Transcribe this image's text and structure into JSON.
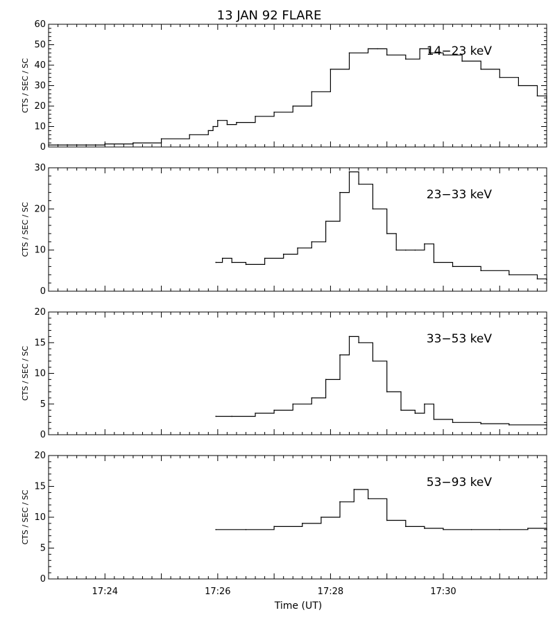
{
  "figure": {
    "title": "13 JAN 92 FLARE",
    "xlabel": "Time (UT)"
  },
  "chart_data": [
    {
      "type": "line",
      "label": "14-23 keV",
      "ylabel": "CTS / SEC / SC",
      "ylim": [
        0,
        60
      ],
      "yticks": [
        0,
        10,
        20,
        30,
        40,
        50,
        60
      ],
      "xlim": [
        "17:23",
        "17:31:50"
      ],
      "xticks": [
        "17:24",
        "17:26",
        "17:28",
        "17:30"
      ],
      "series": [
        {
          "x": [
            "17:23:00",
            "17:23:30",
            "17:24:00",
            "17:24:30",
            "17:25:00",
            "17:25:30",
            "17:25:50",
            "17:25:55",
            "17:26:00",
            "17:26:10",
            "17:26:20",
            "17:26:40",
            "17:27:00",
            "17:27:20",
            "17:27:40",
            "17:28:00",
            "17:28:20",
            "17:28:40",
            "17:28:50",
            "17:29:00",
            "17:29:20",
            "17:29:35",
            "17:29:45",
            "17:30:00",
            "17:30:20",
            "17:30:40",
            "17:31:00",
            "17:31:20",
            "17:31:40",
            "17:31:50"
          ],
          "values": [
            1,
            1,
            1.5,
            2,
            4,
            6,
            8,
            10,
            13,
            11,
            12,
            15,
            17,
            20,
            27,
            38,
            46,
            48,
            48,
            45,
            43,
            48,
            46,
            45,
            42,
            38,
            34,
            30,
            25,
            22
          ]
        }
      ]
    },
    {
      "type": "line",
      "label": "23-33 keV",
      "ylabel": "CTS / SEC / SC",
      "ylim": [
        0,
        30
      ],
      "yticks": [
        0,
        10,
        20,
        30
      ],
      "xlim": [
        "17:23",
        "17:31:50"
      ],
      "xticks": [
        "17:24",
        "17:26",
        "17:28",
        "17:30"
      ],
      "series": [
        {
          "x": [
            "17:25:58",
            "17:26:05",
            "17:26:15",
            "17:26:30",
            "17:26:50",
            "17:27:10",
            "17:27:25",
            "17:27:40",
            "17:27:55",
            "17:28:10",
            "17:28:20",
            "17:28:30",
            "17:28:45",
            "17:29:00",
            "17:29:10",
            "17:29:20",
            "17:29:30",
            "17:29:40",
            "17:29:50",
            "17:30:10",
            "17:30:40",
            "17:31:10",
            "17:31:40",
            "17:31:50"
          ],
          "values": [
            7,
            8,
            7,
            6.5,
            8,
            9,
            10.5,
            12,
            17,
            24,
            29,
            26,
            20,
            14,
            10,
            10,
            10,
            11.5,
            7,
            6,
            5,
            4,
            3,
            2.8
          ]
        }
      ]
    },
    {
      "type": "line",
      "label": "33-53 keV",
      "ylabel": "CTS / SEC / SC",
      "ylim": [
        0,
        20
      ],
      "yticks": [
        0,
        5,
        10,
        15,
        20
      ],
      "xlim": [
        "17:23",
        "17:31:50"
      ],
      "xticks": [
        "17:24",
        "17:26",
        "17:28",
        "17:30"
      ],
      "series": [
        {
          "x": [
            "17:25:58",
            "17:26:15",
            "17:26:40",
            "17:27:00",
            "17:27:20",
            "17:27:40",
            "17:27:55",
            "17:28:10",
            "17:28:20",
            "17:28:30",
            "17:28:45",
            "17:29:00",
            "17:29:15",
            "17:29:30",
            "17:29:40",
            "17:29:50",
            "17:30:10",
            "17:30:40",
            "17:31:10",
            "17:31:50"
          ],
          "values": [
            3,
            3,
            3.5,
            4,
            5,
            6,
            9,
            13,
            16,
            15,
            12,
            7,
            4,
            3.5,
            5,
            2.5,
            2,
            1.8,
            1.6,
            1.6
          ]
        }
      ]
    },
    {
      "type": "line",
      "label": "53-93 keV",
      "ylabel": "CTS / SEC / SC",
      "ylim": [
        0,
        20
      ],
      "yticks": [
        0,
        5,
        10,
        15,
        20
      ],
      "xlim": [
        "17:23",
        "17:31:50"
      ],
      "xticks": [
        "17:24",
        "17:26",
        "17:28",
        "17:30"
      ],
      "series": [
        {
          "x": [
            "17:25:58",
            "17:26:30",
            "17:27:00",
            "17:27:30",
            "17:27:50",
            "17:28:10",
            "17:28:25",
            "17:28:40",
            "17:29:00",
            "17:29:20",
            "17:29:40",
            "17:30:00",
            "17:30:30",
            "17:31:00",
            "17:31:30",
            "17:31:50"
          ],
          "values": [
            8,
            8,
            8.5,
            9,
            10,
            12.5,
            14.5,
            13,
            9.5,
            8.5,
            8.2,
            8,
            8,
            8,
            8.2,
            8
          ]
        }
      ]
    }
  ]
}
